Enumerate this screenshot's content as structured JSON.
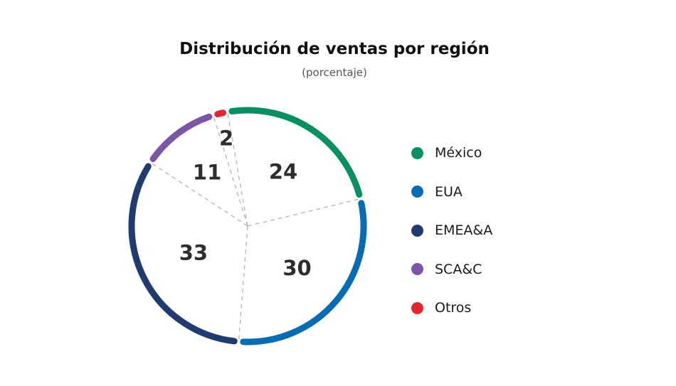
{
  "chart_data": {
    "type": "pie",
    "title": "Distribución de ventas por región",
    "subtitle": "(porcentaje)",
    "categories": [
      "México",
      "EUA",
      "EMEA&A",
      "SCA&C",
      "Otros"
    ],
    "values": [
      24,
      30,
      33,
      11,
      2
    ],
    "colors": [
      "#0a8f63",
      "#0a6bb5",
      "#1f3b70",
      "#7b55a6",
      "#e32530"
    ],
    "legend_position": "right",
    "labels_on_slices": true
  }
}
